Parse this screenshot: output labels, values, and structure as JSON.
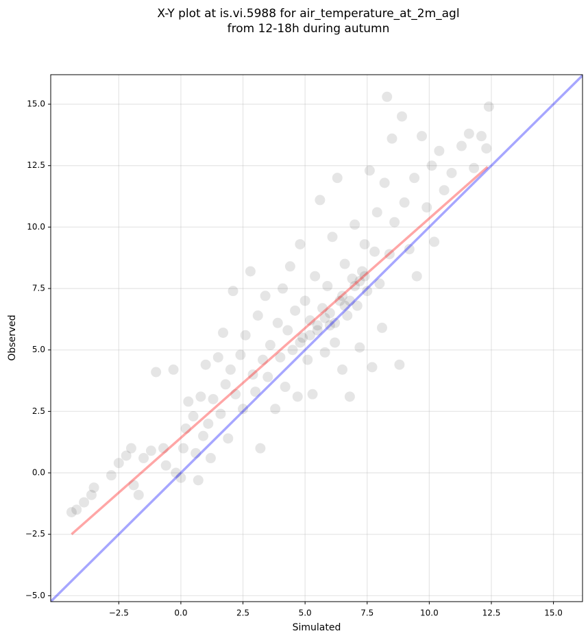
{
  "chart_data": {
    "type": "scatter",
    "title": [
      "X-Y plot at is.vi.5988 for air_temperature_at_2m_agl",
      "from 12-18h during autumn"
    ],
    "x_label": "Simulated",
    "y_label": "Observed",
    "xlim": [
      -5.24,
      16.17
    ],
    "ylim": [
      -5.24,
      16.2
    ],
    "grid": true,
    "xticks": [
      {
        "value": -2.5,
        "label": "−2.5"
      },
      {
        "value": 0,
        "label": "0.0"
      },
      {
        "value": 2.5,
        "label": "2.5"
      },
      {
        "value": 5,
        "label": "5.0"
      },
      {
        "value": 7.5,
        "label": "7.5"
      },
      {
        "value": 10,
        "label": "10.0"
      },
      {
        "value": 12.5,
        "label": "12.5"
      },
      {
        "value": 15,
        "label": "15.0"
      }
    ],
    "yticks": [
      {
        "value": -5,
        "label": "−5.0"
      },
      {
        "value": -2.5,
        "label": "−2.5"
      },
      {
        "value": 0,
        "label": "0.0"
      },
      {
        "value": 2.5,
        "label": "2.5"
      },
      {
        "value": 5,
        "label": "5.0"
      },
      {
        "value": 7.5,
        "label": "7.5"
      },
      {
        "value": 10,
        "label": "10.0"
      },
      {
        "value": 12.5,
        "label": "12.5"
      },
      {
        "value": 15,
        "label": "15.0"
      }
    ],
    "series": [
      {
        "kind": "points",
        "color": "black",
        "alpha": 0.1,
        "x": [
          -4.4,
          -4.2,
          -3.9,
          -3.6,
          -3.5,
          -2.8,
          -2.5,
          -2.2,
          -2.0,
          -1.9,
          -1.7,
          -1.5,
          -1.2,
          -1.0,
          -0.7,
          -0.6,
          -0.3,
          -0.2,
          0.0,
          0.1,
          0.2,
          0.3,
          0.5,
          0.6,
          0.7,
          0.8,
          0.9,
          1.0,
          1.1,
          1.2,
          1.3,
          1.5,
          1.6,
          1.7,
          1.8,
          1.9,
          2.0,
          2.1,
          2.2,
          2.4,
          2.5,
          2.6,
          2.8,
          2.9,
          3.0,
          3.1,
          3.2,
          3.3,
          3.4,
          3.5,
          3.6,
          3.8,
          3.9,
          4.0,
          4.1,
          4.2,
          4.3,
          4.4,
          4.5,
          4.6,
          4.7,
          4.8,
          4.9,
          5.0,
          5.1,
          5.2,
          5.3,
          5.4,
          5.5,
          5.6,
          5.7,
          5.8,
          5.9,
          6.0,
          6.1,
          6.2,
          6.3,
          6.4,
          6.5,
          6.6,
          6.7,
          6.8,
          6.9,
          7.0,
          7.1,
          7.2,
          7.3,
          7.4,
          7.5,
          7.6,
          7.7,
          7.8,
          7.9,
          8.0,
          8.1,
          8.2,
          8.3,
          8.4,
          8.5,
          8.6,
          8.8,
          8.9,
          9.0,
          9.2,
          9.4,
          9.5,
          9.7,
          9.9,
          10.1,
          10.2,
          10.4,
          10.6,
          10.9,
          11.3,
          11.6,
          11.8,
          12.1,
          12.3,
          12.4,
          5.5,
          6.0,
          6.5,
          7.0,
          7.2,
          5.8,
          6.2,
          6.8,
          7.4,
          5.2,
          4.8,
          6.6
        ],
        "values": [
          -1.6,
          -1.5,
          -1.2,
          -0.9,
          -0.6,
          -0.1,
          0.4,
          0.7,
          1.0,
          -0.5,
          -0.9,
          0.6,
          0.9,
          4.1,
          1.0,
          0.3,
          4.2,
          0.0,
          -0.2,
          1.0,
          1.8,
          2.9,
          2.3,
          0.8,
          -0.3,
          3.1,
          1.5,
          4.4,
          2.0,
          0.6,
          3.0,
          4.7,
          2.4,
          5.7,
          3.6,
          1.4,
          4.2,
          7.4,
          3.2,
          4.8,
          2.6,
          5.6,
          8.2,
          4.0,
          3.3,
          6.4,
          1.0,
          4.6,
          7.2,
          3.9,
          5.2,
          2.6,
          6.1,
          4.7,
          7.5,
          3.5,
          5.8,
          8.4,
          5.0,
          6.6,
          3.1,
          9.3,
          5.5,
          7.0,
          4.6,
          6.2,
          3.2,
          8.0,
          5.8,
          11.1,
          6.7,
          4.9,
          7.6,
          6.0,
          9.6,
          5.3,
          12.0,
          7.0,
          4.2,
          8.5,
          6.4,
          3.1,
          7.9,
          10.1,
          6.8,
          5.1,
          8.2,
          9.3,
          7.4,
          12.3,
          4.3,
          9.0,
          10.6,
          7.7,
          5.9,
          11.8,
          15.3,
          8.9,
          13.6,
          10.2,
          4.4,
          14.5,
          11.0,
          9.1,
          12.0,
          8.0,
          13.7,
          10.8,
          12.5,
          9.4,
          13.1,
          11.5,
          12.2,
          13.3,
          13.8,
          12.4,
          13.7,
          13.2,
          14.9,
          6.0,
          6.5,
          7.2,
          7.6,
          7.8,
          6.3,
          6.1,
          7.0,
          8.0,
          5.6,
          5.3,
          6.8
        ]
      },
      {
        "kind": "line",
        "color": "red",
        "alpha": 0.35,
        "x": [
          -4.4,
          12.35
        ],
        "values": [
          -2.5,
          12.45
        ]
      },
      {
        "kind": "line",
        "color": "blue",
        "alpha": 0.35,
        "x": [
          -5.24,
          16.17
        ],
        "values": [
          -5.24,
          16.17
        ]
      }
    ]
  }
}
